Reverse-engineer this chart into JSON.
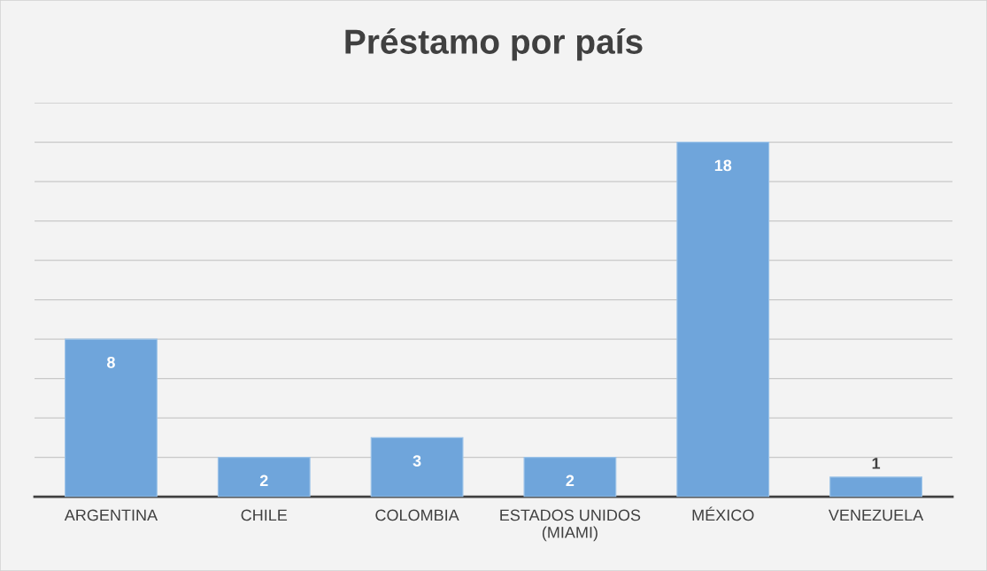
{
  "chart_data": {
    "type": "bar",
    "title": "Préstamo por país",
    "categories": [
      "ARGENTINA",
      "CHILE",
      "COLOMBIA",
      "ESTADOS UNIDOS\n(MIAMI)",
      "MÉXICO",
      "VENEZUELA"
    ],
    "values": [
      8,
      2,
      3,
      2,
      18,
      1
    ],
    "color": "#6fa5db",
    "ylim": [
      0,
      20
    ],
    "yticks": [
      {
        "value": 0,
        "label": null
      },
      {
        "value": 2,
        "label": null
      },
      {
        "value": 4,
        "label": null
      },
      {
        "value": 6,
        "label": null
      },
      {
        "value": 8,
        "label": null
      },
      {
        "value": 10,
        "label": null
      },
      {
        "value": 12,
        "label": null
      },
      {
        "value": 14,
        "label": null
      },
      {
        "value": 16,
        "label": null
      },
      {
        "value": 18,
        "label": null
      },
      {
        "value": 20,
        "label": null
      }
    ],
    "grid": "y",
    "tick_labels": "x",
    "data_labels": true
  }
}
